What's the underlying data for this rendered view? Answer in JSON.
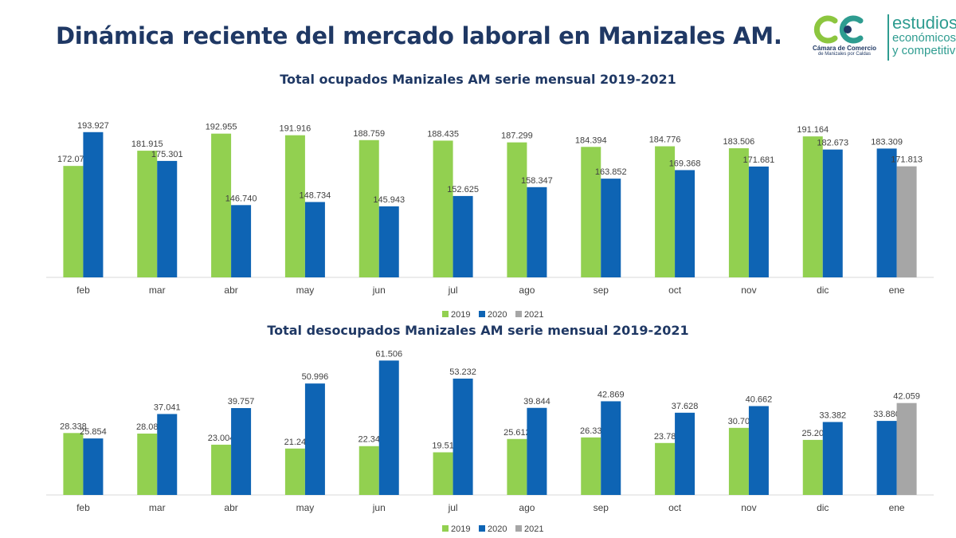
{
  "title": "Dinámica reciente del mercado laboral en Manizales AM.",
  "logo": {
    "org_line1": "Cámara de Comercio",
    "org_line2": "de Manizales por Caldas",
    "text_line1": "estudios",
    "text_line2": "económicos",
    "text_line3": "y competitiv"
  },
  "colors": {
    "2019": "#92d050",
    "2020": "#0e64b4",
    "2021": "#a6a6a6",
    "title": "#1f3864"
  },
  "chart_data": [
    {
      "type": "bar",
      "title": "Total ocupados Manizales AM serie mensual 2019-2021",
      "categories": [
        "feb",
        "mar",
        "abr",
        "may",
        "jun",
        "jul",
        "ago",
        "sep",
        "oct",
        "nov",
        "dic",
        "ene"
      ],
      "series": [
        {
          "name": "2019",
          "values": [
            172.072,
            181.915,
            192.955,
            191.916,
            188.759,
            188.435,
            187.299,
            184.394,
            184.776,
            183.506,
            191.164,
            null
          ],
          "labels": [
            "172.072",
            "181.915",
            "192.955",
            "191.916",
            "188.759",
            "188.435",
            "187.299",
            "184.394",
            "184.776",
            "183.506",
            "191.164",
            ""
          ]
        },
        {
          "name": "2020",
          "values": [
            193.927,
            175.301,
            146.74,
            148.734,
            145.943,
            152.625,
            158.347,
            163.852,
            169.368,
            171.681,
            182.673,
            183.309
          ],
          "labels": [
            "193.927",
            "175.301",
            "146.740",
            "148.734",
            "145.943",
            "152.625",
            "158.347",
            "163.852",
            "169.368",
            "171.681",
            "182.673",
            "183.309"
          ]
        },
        {
          "name": "2021",
          "values": [
            null,
            null,
            null,
            null,
            null,
            null,
            null,
            null,
            null,
            null,
            null,
            171.813
          ],
          "labels": [
            "",
            "",
            "",
            "",
            "",
            "",
            "",
            "",
            "",
            "",
            "",
            "171.813"
          ]
        }
      ],
      "ylim": [
        100,
        200
      ],
      "legend": "bottom-center",
      "grid": false
    },
    {
      "type": "bar",
      "title": "Total desocupados Manizales AM serie mensual  2019-2021",
      "categories": [
        "feb",
        "mar",
        "abr",
        "may",
        "jun",
        "jul",
        "ago",
        "sep",
        "oct",
        "nov",
        "dic",
        "ene"
      ],
      "series": [
        {
          "name": "2019",
          "values": [
            28.338,
            28.08,
            23.004,
            21.24,
            22.34,
            19.51,
            25.612,
            26.33,
            23.78,
            30.7,
            25.2,
            null
          ],
          "labels": [
            "28.338",
            "28.08",
            "23.004",
            "21.24",
            "22.34",
            "19.51",
            "25.612",
            "26.33",
            "23.78",
            "30.70",
            "25.20",
            ""
          ]
        },
        {
          "name": "2020",
          "values": [
            25.854,
            37.041,
            39.757,
            50.996,
            61.506,
            53.232,
            39.844,
            42.869,
            37.628,
            40.662,
            33.382,
            33.88
          ],
          "labels": [
            "25.854",
            "37.041",
            "39.757",
            "50.996",
            "61.506",
            "53.232",
            "39.844",
            "42.869",
            "37.628",
            "40.662",
            "33.382",
            "33.880"
          ]
        },
        {
          "name": "2021",
          "values": [
            null,
            null,
            null,
            null,
            null,
            null,
            null,
            null,
            null,
            null,
            null,
            42.059
          ],
          "labels": [
            "",
            "",
            "",
            "",
            "",
            "",
            "",
            "",
            "",
            "",
            "",
            "42.059"
          ]
        }
      ],
      "ylim": [
        0,
        62
      ],
      "legend": "bottom-center",
      "grid": false
    }
  ]
}
